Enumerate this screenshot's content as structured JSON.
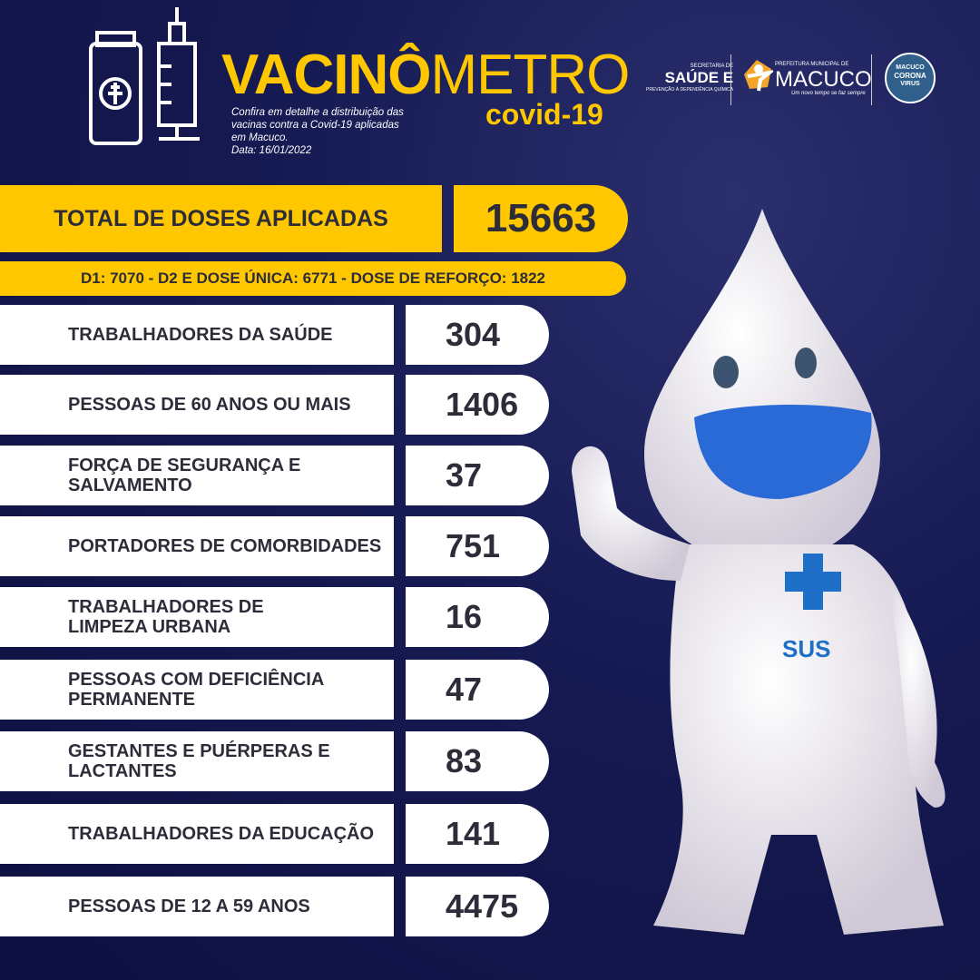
{
  "header": {
    "title_bold": "VACINÔ",
    "title_thin": "METRO",
    "subtitle": "covid-19",
    "description": "Confira em detalhe a distribuição das vacinas contra a Covid-19 aplicadas em Macuco.",
    "date": "Data: 16/01/2022"
  },
  "logos": {
    "secretaria_small": "SECRETARIA DE",
    "secretaria_big": "SAÚDE E",
    "secretaria_sub": "PREVENÇÃO À DEPENDÊNCIA QUÍMICA",
    "prefeitura_small": "PREFEITURA MUNICIPAL DE",
    "prefeitura_big": "MACUCO",
    "prefeitura_slogan": "Um novo tempo se faz sempre",
    "corona_line1": "MACUCO",
    "corona_line2": "CORONA",
    "corona_line3": "VIRUS"
  },
  "total": {
    "label": "TOTAL DE DOSES APLICADAS",
    "value": "15663"
  },
  "doses_breakdown": "D1: 7070  - D2 E DOSE ÚNICA: 6771 - DOSE DE REFORÇO: 1822",
  "groups": [
    {
      "label": "TRABALHADORES DA SAÚDE",
      "value": "304"
    },
    {
      "label": "PESSOAS DE 60 ANOS OU MAIS",
      "value": "1406"
    },
    {
      "label": "FORÇA DE SEGURANÇA E SALVAMENTO",
      "value": "37"
    },
    {
      "label": "PORTADORES DE COMORBIDADES",
      "value": "751"
    },
    {
      "label": "TRABALHADORES DE LIMPEZA URBANA",
      "value": "16"
    },
    {
      "label": "PESSOAS COM DEFICIÊNCIA PERMANENTE",
      "value": "47"
    },
    {
      "label": "GESTANTES E PUÉRPERAS E LACTANTES",
      "value": "83"
    },
    {
      "label": "TRABALHADORES DA EDUCAÇÃO",
      "value": "141"
    },
    {
      "label": "PESSOAS DE 12 A 59 ANOS",
      "value": "4475"
    }
  ],
  "mascot": {
    "badge": "SUS"
  },
  "colors": {
    "accent": "#ffc700",
    "background": "#161a52",
    "text": "#2d2d3a",
    "sus_blue": "#1e6fc8"
  }
}
